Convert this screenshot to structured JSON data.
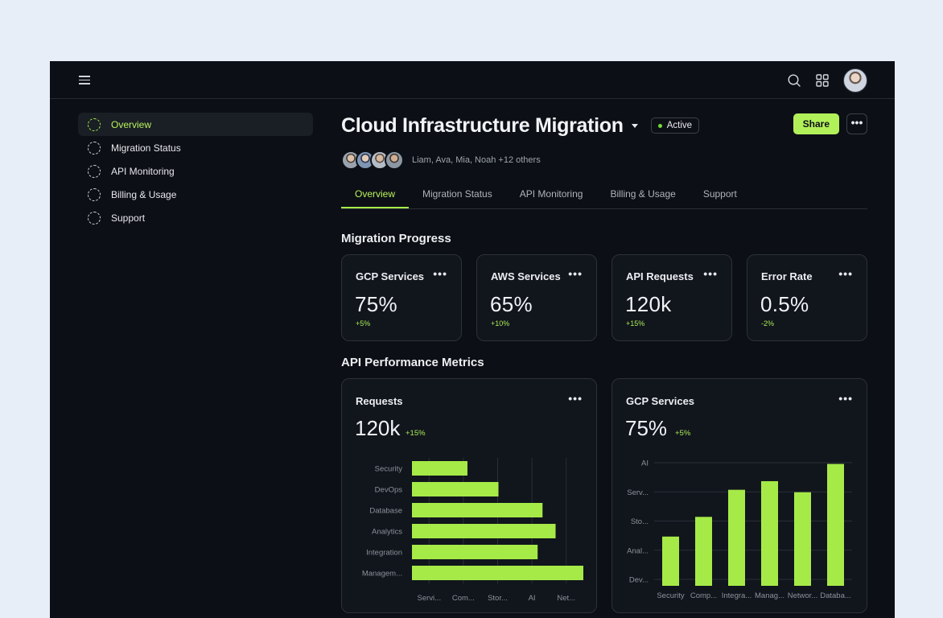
{
  "header": {
    "menu_icon": "hamburger-icon",
    "search_icon": "search-icon",
    "apps_icon": "grid-icon"
  },
  "sidebar": {
    "items": [
      {
        "label": "Overview",
        "active": true
      },
      {
        "label": "Migration Status"
      },
      {
        "label": "API Monitoring"
      },
      {
        "label": "Billing & Usage"
      },
      {
        "label": "Support"
      }
    ]
  },
  "project": {
    "title": "Cloud Infrastructure Migration",
    "status": "Active",
    "share_label": "Share",
    "more_label": "•••",
    "members_text": "Liam, Ava, Mia, Noah +12 others"
  },
  "tabs": [
    {
      "label": "Overview",
      "active": true
    },
    {
      "label": "Migration Status"
    },
    {
      "label": "API Monitoring"
    },
    {
      "label": "Billing & Usage"
    },
    {
      "label": "Support"
    }
  ],
  "sections": {
    "progress_title": "Migration Progress",
    "metrics_title": "API Performance Metrics"
  },
  "stats": [
    {
      "label": "GCP Services",
      "value": "75%",
      "delta": "+5%"
    },
    {
      "label": "AWS Services",
      "value": "65%",
      "delta": "+10%"
    },
    {
      "label": "API Requests",
      "value": "120k",
      "delta": "+15%"
    },
    {
      "label": "Error Rate",
      "value": "0.5%",
      "delta": "-2%"
    }
  ],
  "colors": {
    "accent": "#b2f05a",
    "bar": "#a6ea48",
    "background": "#0c0f15",
    "card": "#11151c"
  },
  "charts": {
    "requests": {
      "title": "Requests",
      "value": "120k",
      "delta": "+15%",
      "more_label": "•••"
    },
    "gcp": {
      "title": "GCP Services",
      "value": "75%",
      "delta": "+5%",
      "more_label": "•••"
    }
  },
  "chart_data": [
    {
      "type": "bar",
      "orientation": "horizontal",
      "categories": [
        "Security",
        "DevOps",
        "Database",
        "Analytics",
        "Integration",
        "Managem..."
      ],
      "values": [
        34,
        53,
        80,
        88,
        77,
        105
      ],
      "x_tick_labels": [
        "Servi...",
        "Com...",
        "Stor...",
        "AI",
        "Net..."
      ],
      "xlim": [
        0,
        105
      ],
      "grid": true
    },
    {
      "type": "bar",
      "orientation": "vertical",
      "categories": [
        "Security",
        "Comp...",
        "Integra...",
        "Manag...",
        "Networ...",
        "Databa..."
      ],
      "values": [
        40,
        56,
        78,
        85,
        76,
        99
      ],
      "y_tick_labels": [
        "AI",
        "Serv...",
        "Sto...",
        "Anal...",
        "Dev..."
      ],
      "ylim": [
        0,
        100
      ],
      "grid": true
    }
  ]
}
